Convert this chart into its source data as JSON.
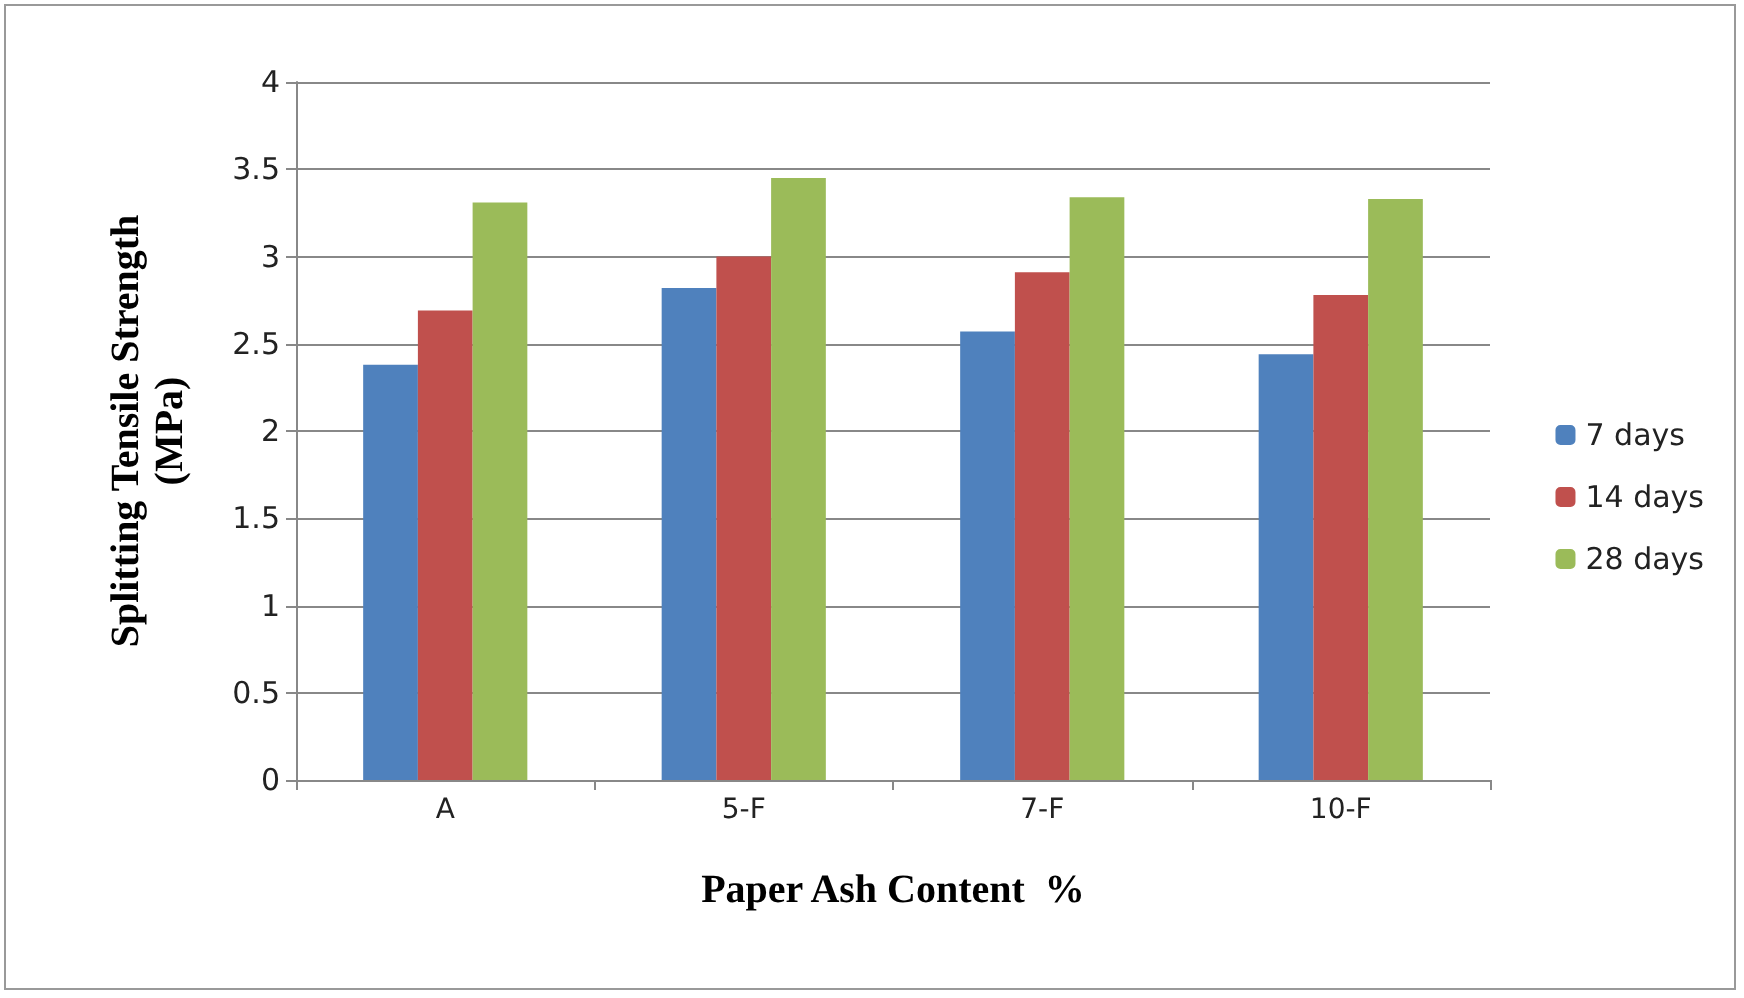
{
  "chart_data": {
    "type": "bar",
    "xlabel": "Paper Ash Content  %",
    "ylabel": "Splitting Tensile Strength\n(MPa)",
    "categories": [
      "A",
      "5-F",
      "7-F",
      "10-F"
    ],
    "series": [
      {
        "name": "7 days",
        "color": "#4f81bd",
        "values": [
          2.38,
          2.82,
          2.57,
          2.44
        ]
      },
      {
        "name": "14 days",
        "color": "#c0504d",
        "values": [
          2.69,
          3.0,
          2.91,
          2.78
        ]
      },
      {
        "name": "28 days",
        "color": "#9bbb59",
        "values": [
          3.31,
          3.45,
          3.34,
          3.33
        ]
      }
    ],
    "ylim": [
      0,
      4
    ],
    "yticks": [
      0,
      0.5,
      1,
      1.5,
      2,
      2.5,
      3,
      3.5,
      4
    ],
    "grid": "y",
    "legend": "right"
  }
}
